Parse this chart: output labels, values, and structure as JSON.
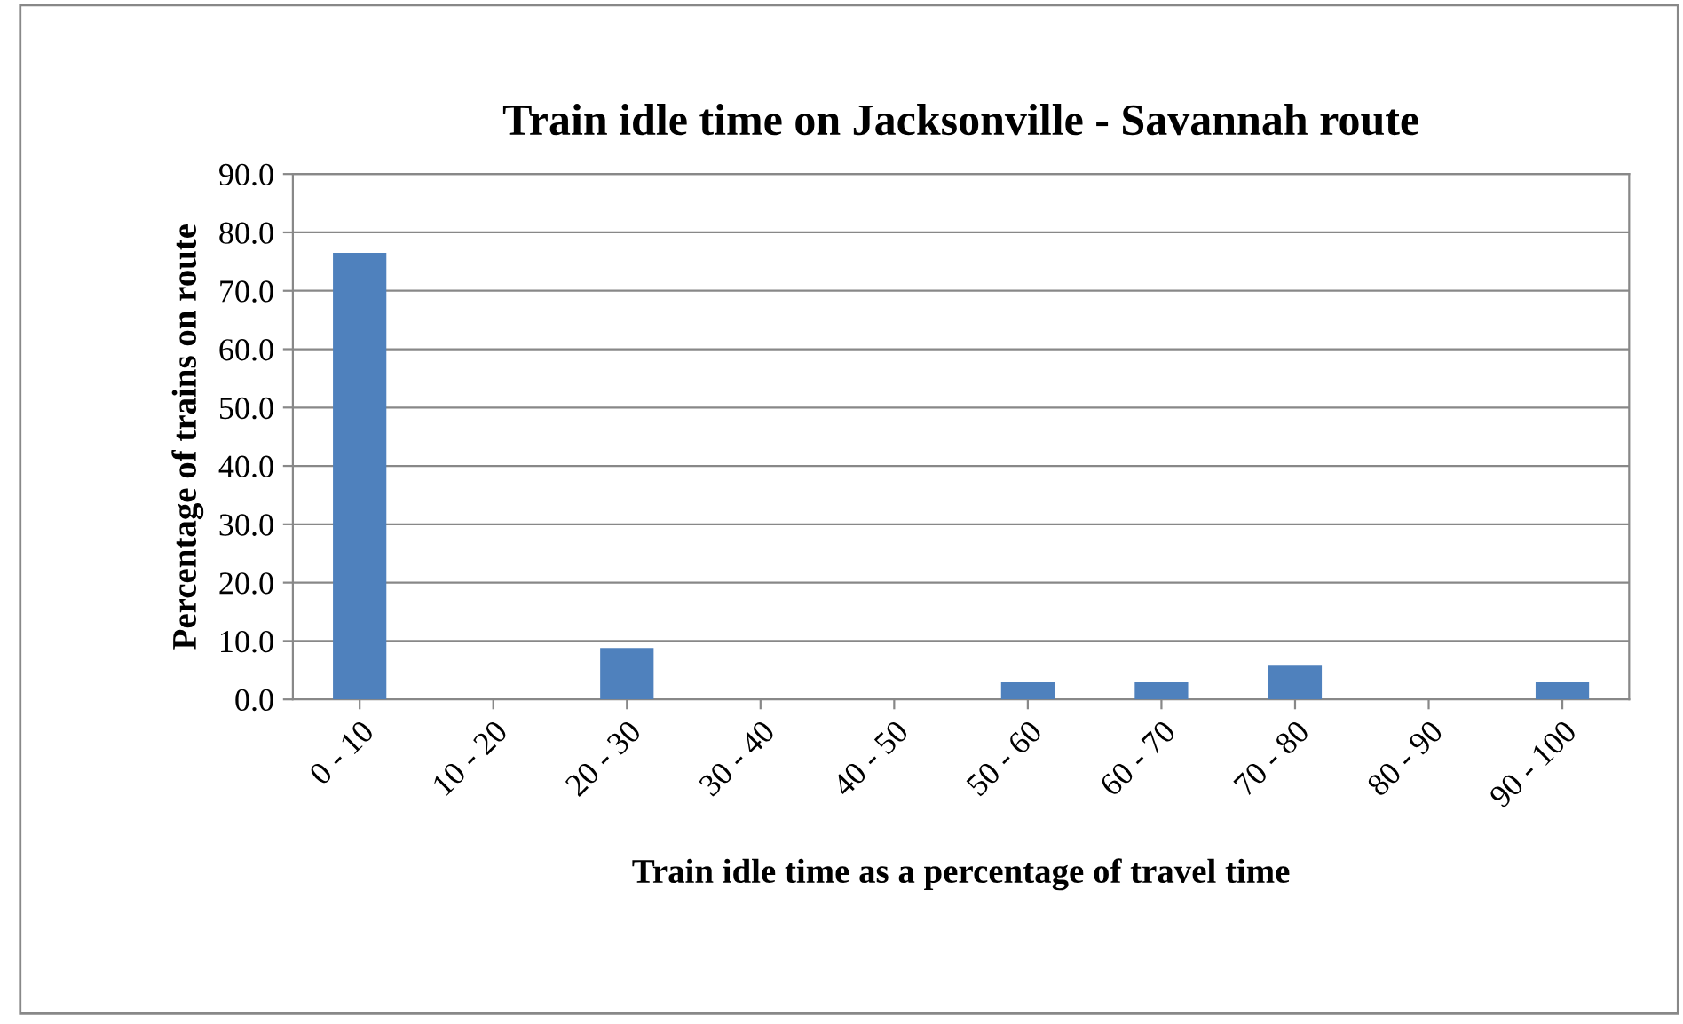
{
  "chart_data": {
    "type": "bar",
    "title": "Train idle time on Jacksonville - Savannah route",
    "xlabel": "Train idle time as a percentage of travel time",
    "ylabel": "Percentage of trains on route",
    "categories": [
      "0 - 10",
      "10 - 20",
      "20 - 30",
      "30 - 40",
      "40 - 50",
      "50 - 60",
      "60 - 70",
      "70 - 80",
      "80 - 90",
      "90 - 100"
    ],
    "values": [
      76.5,
      0,
      8.8,
      0,
      0,
      2.9,
      2.9,
      5.9,
      0,
      2.9
    ],
    "color": "#4f81bd",
    "ylim": [
      0,
      90
    ],
    "yticks": [
      {
        "value": 0,
        "label": "0.0"
      },
      {
        "value": 10,
        "label": "10.0"
      },
      {
        "value": 20,
        "label": "20.0"
      },
      {
        "value": 30,
        "label": "30.0"
      },
      {
        "value": 40,
        "label": "40.0"
      },
      {
        "value": 50,
        "label": "50.0"
      },
      {
        "value": 60,
        "label": "60.0"
      },
      {
        "value": 70,
        "label": "70.0"
      },
      {
        "value": 80,
        "label": "80.0"
      },
      {
        "value": 90,
        "label": "90.0"
      }
    ],
    "grid": "y"
  }
}
